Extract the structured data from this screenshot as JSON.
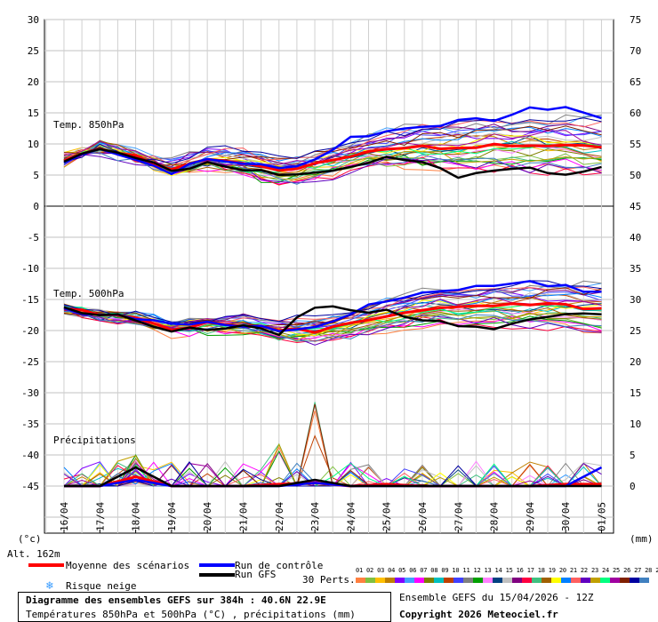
{
  "chart_data": [
    {
      "type": "line",
      "title": "Temp. 850hPa",
      "units_left": "(°c)",
      "left_ticks": [
        "30",
        "25",
        "20",
        "15",
        "10",
        "5",
        "0"
      ],
      "right_ticks": [
        "75",
        "70",
        "65",
        "60",
        "55",
        "50",
        "45"
      ],
      "x": [
        "16/04",
        "17/04",
        "18/04",
        "19/04",
        "20/04",
        "21/04",
        "22/04",
        "23/04",
        "24/04",
        "25/04",
        "26/04",
        "27/04",
        "28/04",
        "29/04",
        "30/04",
        "01/05"
      ],
      "series": [
        {
          "name": "Moyenne des scénarios",
          "color": "#ff0000",
          "values": [
            7.5,
            9.5,
            8,
            6,
            7.5,
            7,
            5.5,
            6.5,
            8,
            9,
            9.5,
            9.5,
            10,
            10,
            10,
            9.5
          ]
        },
        {
          "name": "Run de contrôle",
          "color": "#0000ff",
          "values": [
            7,
            9.5,
            7.5,
            5.5,
            7.5,
            7,
            6,
            7.5,
            11,
            12,
            13,
            13.5,
            14,
            15.5,
            16,
            14
          ]
        },
        {
          "name": "Run GFS",
          "color": "#000000",
          "values": [
            7,
            9.5,
            8,
            5.5,
            7,
            6,
            5,
            5,
            6,
            8,
            7,
            4.5,
            5.5,
            6,
            5,
            6
          ]
        }
      ]
    },
    {
      "type": "line",
      "title": "Temp. 500hPa",
      "left_ticks": [
        "-5",
        "-10",
        "-15",
        "-20",
        "-25",
        "-30"
      ],
      "right_ticks": [
        "40",
        "35",
        "30",
        "25",
        "20",
        "15"
      ],
      "x": [
        "16/04",
        "17/04",
        "18/04",
        "19/04",
        "20/04",
        "21/04",
        "22/04",
        "23/04",
        "24/04",
        "25/04",
        "26/04",
        "27/04",
        "28/04",
        "29/04",
        "30/04",
        "01/05"
      ],
      "series": [
        {
          "name": "Moyenne des scénarios",
          "color": "#ff0000",
          "values": [
            -16.5,
            -17.5,
            -18,
            -19.5,
            -19,
            -19,
            -20,
            -20,
            -19,
            -17.5,
            -16.5,
            -16.5,
            -16,
            -16,
            -16,
            -16.5
          ]
        },
        {
          "name": "Run de contrôle",
          "color": "#0000ff",
          "values": [
            -16.5,
            -17.5,
            -18,
            -19,
            -19,
            -19,
            -20,
            -19.5,
            -17,
            -15,
            -14,
            -13.5,
            -12.5,
            -12,
            -13,
            -14
          ]
        },
        {
          "name": "Run GFS",
          "color": "#000000",
          "values": [
            -16.5,
            -17.5,
            -18,
            -20,
            -19.5,
            -19.5,
            -20.5,
            -16,
            -16.5,
            -17,
            -18,
            -19,
            -20,
            -18,
            -17,
            -17
          ]
        }
      ]
    },
    {
      "type": "line",
      "title": "Précipitations",
      "units_right": "(mm)",
      "left_ticks": [
        "-35",
        "-40",
        "-45"
      ],
      "right_ticks": [
        "10",
        "5",
        "0"
      ],
      "x": [
        "16/04",
        "17/04",
        "18/04",
        "19/04",
        "20/04",
        "21/04",
        "22/04",
        "23/04",
        "24/04",
        "25/04",
        "26/04",
        "27/04",
        "28/04",
        "29/04",
        "30/04",
        "01/05"
      ],
      "series": [
        {
          "name": "Moyenne des scénarios",
          "color": "#ff0000",
          "values": [
            0,
            0,
            1.5,
            0,
            0,
            0,
            0.3,
            0.5,
            0,
            0.3,
            0,
            0,
            0,
            0,
            0.3,
            0.3
          ]
        },
        {
          "name": "Run de contrôle",
          "color": "#0000ff",
          "values": [
            0,
            0,
            1,
            0,
            0,
            0,
            0,
            0.5,
            0,
            0,
            0,
            0,
            0,
            0,
            0,
            3
          ]
        },
        {
          "name": "Run GFS",
          "color": "#000000",
          "values": [
            0,
            0,
            3,
            0,
            0,
            0,
            0,
            1,
            0,
            0,
            0,
            0,
            0,
            0,
            0,
            0
          ]
        }
      ]
    }
  ],
  "alt_label": "Alt. 162m",
  "units_left": "(°c)",
  "units_right": "(mm)",
  "legend": {
    "mean": "Moyenne des scénarios",
    "control": "Run de contrôle",
    "gfs": "Run GFS",
    "snow": "Risque neige",
    "perts": "30 Perts."
  },
  "pert_numbers": "01 02 03 04 05 06 07 08 09 10 11 12 13 14 15 16 17 18 19 20 21 22 23 24 25 26 27 28 29 30",
  "pert_colors": [
    "#ff8040",
    "#80c040",
    "#ffc000",
    "#c08000",
    "#8000ff",
    "#40a0ff",
    "#ff00ff",
    "#808000",
    "#00c0c0",
    "#c04000",
    "#4040ff",
    "#808080",
    "#00a000",
    "#ff80ff",
    "#004080",
    "#c0c0c0",
    "#800080",
    "#ff0040",
    "#40c080",
    "#a06000",
    "#ffff00",
    "#0080ff",
    "#ff6060",
    "#6000c0",
    "#c0a000",
    "#00ff80",
    "#a000a0",
    "#802000",
    "#0000a0",
    "#4080c0"
  ],
  "footer": {
    "title": "Diagramme des ensembles GEFS sur 384h : 40.6N 22.9E",
    "subtitle": "Températures 850hPa et 500hPa (°C) , précipitations (mm)",
    "run": "Ensemble GEFS du 15/04/2026 - 12Z",
    "copyright": "Copyright 2026 Meteociel.fr"
  }
}
